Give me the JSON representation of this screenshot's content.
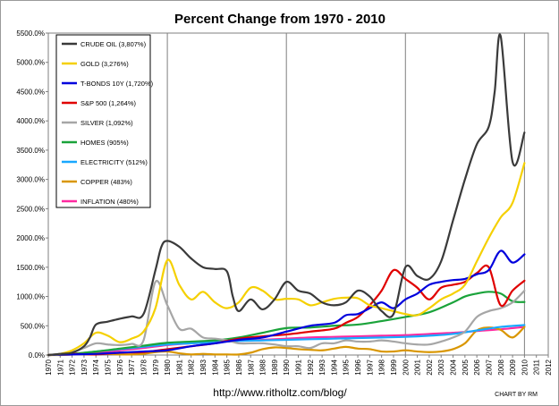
{
  "chart_data": {
    "type": "line",
    "title": "Percent Change  from  1970 - 2010",
    "xlabel": "",
    "ylabel": "",
    "xlim": [
      1970,
      2012
    ],
    "ylim": [
      0,
      5500
    ],
    "y_tick_values": [
      0,
      500,
      1000,
      1500,
      2000,
      2500,
      3000,
      3500,
      4000,
      4500,
      5000,
      5500
    ],
    "y_tick_labels": [
      "0.0%",
      "500.0%",
      "1000.0%",
      "1500.0%",
      "2000.0%",
      "2500.0%",
      "3000.0%",
      "3500.0%",
      "4000.0%",
      "4500.0%",
      "5000.0%",
      "5500.0%"
    ],
    "x_ticks": [
      "1970",
      "1971",
      "1972",
      "1973",
      "1974",
      "1975",
      "1976",
      "1977",
      "1978",
      "1979",
      "1980",
      "1981",
      "1982",
      "1983",
      "1984",
      "1985",
      "1986",
      "1987",
      "1988",
      "1989",
      "1990",
      "1991",
      "1992",
      "1993",
      "1994",
      "1995",
      "1996",
      "1997",
      "1998",
      "1999",
      "2000",
      "2001",
      "2002",
      "2003",
      "2004",
      "2005",
      "2006",
      "2007",
      "2008",
      "2009",
      "2010",
      "2011",
      "2012"
    ],
    "grid": "vertical lines every 10 years",
    "legend_position": "top-left",
    "series": [
      {
        "name": "CRUDE OIL (3,807%)",
        "color": "#3a3a3a",
        "x": [
          1970,
          1971,
          1972,
          1973,
          1973.5,
          1974,
          1975,
          1976,
          1977,
          1978,
          1979,
          1979.5,
          1980,
          1981,
          1982,
          1983,
          1984,
          1985,
          1985.5,
          1986,
          1987,
          1988,
          1989,
          1990,
          1991,
          1992,
          1993,
          1994,
          1995,
          1996,
          1997,
          1998,
          1999,
          2000,
          2001,
          2002,
          2003,
          2004,
          2005,
          2006,
          2007,
          2007.5,
          2008,
          2009,
          2010
        ],
        "values": [
          0,
          20,
          40,
          150,
          300,
          520,
          570,
          620,
          660,
          700,
          1450,
          1850,
          1950,
          1850,
          1650,
          1500,
          1470,
          1430,
          1000,
          750,
          950,
          780,
          950,
          1250,
          1100,
          1050,
          900,
          850,
          900,
          1100,
          1000,
          750,
          700,
          1500,
          1350,
          1300,
          1600,
          2300,
          3000,
          3600,
          3900,
          4500,
          5450,
          3300,
          3800
        ]
      },
      {
        "name": "GOLD (3,276%)",
        "color": "#f5d000",
        "x": [
          1970,
          1971,
          1972,
          1973,
          1974,
          1975,
          1976,
          1977,
          1978,
          1979,
          1980,
          1981,
          1982,
          1983,
          1984,
          1985,
          1986,
          1987,
          1988,
          1989,
          1990,
          1991,
          1992,
          1993,
          1994,
          1995,
          1996,
          1997,
          1998,
          1999,
          2000,
          2001,
          2002,
          2003,
          2004,
          2005,
          2006,
          2007,
          2008,
          2009,
          2010
        ],
        "values": [
          0,
          20,
          80,
          200,
          380,
          330,
          220,
          280,
          400,
          800,
          1620,
          1200,
          950,
          1080,
          900,
          800,
          900,
          1150,
          1100,
          950,
          960,
          950,
          850,
          900,
          960,
          980,
          970,
          850,
          800,
          750,
          700,
          680,
          800,
          950,
          1050,
          1200,
          1600,
          2000,
          2350,
          2600,
          3280
        ]
      },
      {
        "name": "T-BONDS 10Y (1,720%)",
        "color": "#0000dd",
        "x": [
          1970,
          1972,
          1974,
          1976,
          1978,
          1980,
          1982,
          1984,
          1986,
          1988,
          1990,
          1992,
          1994,
          1995,
          1996,
          1997,
          1998,
          1999,
          2000,
          2001,
          2002,
          2003,
          2004,
          2005,
          2006,
          2007,
          2008,
          2009,
          2010
        ],
        "values": [
          0,
          10,
          20,
          40,
          60,
          80,
          150,
          200,
          260,
          300,
          400,
          500,
          550,
          680,
          700,
          800,
          900,
          800,
          950,
          1050,
          1200,
          1250,
          1280,
          1300,
          1380,
          1450,
          1780,
          1580,
          1720
        ]
      },
      {
        "name": "S&P 500 (1,264%)",
        "color": "#e00000",
        "x": [
          1970,
          1972,
          1974,
          1976,
          1978,
          1980,
          1982,
          1984,
          1986,
          1988,
          1990,
          1992,
          1994,
          1995,
          1996,
          1997,
          1998,
          1999,
          2000,
          2001,
          2002,
          2003,
          2004,
          2005,
          2006,
          2007,
          2008,
          2009,
          2010
        ],
        "values": [
          0,
          20,
          10,
          40,
          50,
          100,
          150,
          200,
          280,
          320,
          350,
          400,
          450,
          550,
          650,
          850,
          1100,
          1450,
          1300,
          1150,
          950,
          1150,
          1200,
          1250,
          1400,
          1500,
          850,
          1100,
          1270
        ]
      },
      {
        "name": "SILVER (1,092%)",
        "color": "#a6a6a6",
        "x": [
          1970,
          1971,
          1972,
          1973,
          1974,
          1975,
          1976,
          1977,
          1978,
          1979,
          1980,
          1981,
          1982,
          1983,
          1984,
          1985,
          1986,
          1987,
          1988,
          1989,
          1990,
          1991,
          1992,
          1993,
          1994,
          1995,
          1996,
          1997,
          1998,
          1999,
          2000,
          2001,
          2002,
          2003,
          2004,
          2005,
          2006,
          2007,
          2008,
          2009,
          2010
        ],
        "values": [
          0,
          20,
          50,
          120,
          200,
          180,
          170,
          190,
          250,
          1250,
          850,
          450,
          450,
          300,
          280,
          250,
          200,
          200,
          200,
          180,
          150,
          150,
          120,
          200,
          200,
          250,
          230,
          230,
          250,
          230,
          200,
          180,
          180,
          230,
          300,
          400,
          650,
          750,
          800,
          900,
          1100
        ]
      },
      {
        "name": "HOMES (905%)",
        "color": "#1aa33a",
        "x": [
          1970,
          1972,
          1974,
          1976,
          1978,
          1980,
          1982,
          1984,
          1986,
          1988,
          1990,
          1992,
          1994,
          1996,
          1998,
          2000,
          2002,
          2004,
          2005,
          2006,
          2007,
          2008,
          2009,
          2010
        ],
        "values": [
          0,
          20,
          60,
          110,
          160,
          210,
          230,
          250,
          300,
          380,
          460,
          470,
          500,
          520,
          580,
          650,
          730,
          900,
          1000,
          1050,
          1080,
          1050,
          920,
          905
        ]
      },
      {
        "name": "ELECTRICITY (512%)",
        "color": "#18a8ff",
        "x": [
          1970,
          1972,
          1974,
          1976,
          1978,
          1980,
          1982,
          1984,
          1986,
          1988,
          1990,
          1992,
          1994,
          1996,
          1998,
          2000,
          2002,
          2004,
          2006,
          2008,
          2010
        ],
        "values": [
          0,
          20,
          60,
          100,
          140,
          180,
          200,
          220,
          240,
          250,
          260,
          270,
          280,
          290,
          300,
          310,
          330,
          360,
          420,
          480,
          512
        ]
      },
      {
        "name": "COPPER (483%)",
        "color": "#d99600",
        "x": [
          1970,
          1971,
          1972,
          1973,
          1974,
          1975,
          1976,
          1977,
          1978,
          1979,
          1980,
          1981,
          1982,
          1983,
          1984,
          1985,
          1986,
          1987,
          1988,
          1989,
          1990,
          1991,
          1992,
          1993,
          1994,
          1995,
          1996,
          1997,
          1998,
          1999,
          2000,
          2001,
          2002,
          2003,
          2004,
          2005,
          2006,
          2007,
          2008,
          2009,
          2010
        ],
        "values": [
          0,
          0,
          10,
          20,
          30,
          20,
          10,
          10,
          20,
          50,
          60,
          30,
          10,
          20,
          10,
          10,
          10,
          40,
          100,
          130,
          120,
          100,
          90,
          80,
          110,
          140,
          110,
          100,
          60,
          60,
          80,
          60,
          50,
          60,
          100,
          200,
          420,
          470,
          430,
          300,
          483
        ]
      },
      {
        "name": "INFLATION (480%)",
        "color": "#ff2aa0",
        "x": [
          1970,
          1972,
          1974,
          1976,
          1978,
          1980,
          1982,
          1984,
          1986,
          1988,
          1990,
          1992,
          1994,
          1996,
          1998,
          2000,
          2002,
          2004,
          2006,
          2008,
          2010
        ],
        "values": [
          0,
          10,
          40,
          80,
          120,
          170,
          200,
          220,
          240,
          260,
          280,
          300,
          310,
          320,
          330,
          340,
          360,
          380,
          410,
          440,
          480
        ]
      }
    ]
  },
  "footer": {
    "url": "http://www.ritholtz.com/blog/",
    "credit": "CHART BY RM"
  }
}
